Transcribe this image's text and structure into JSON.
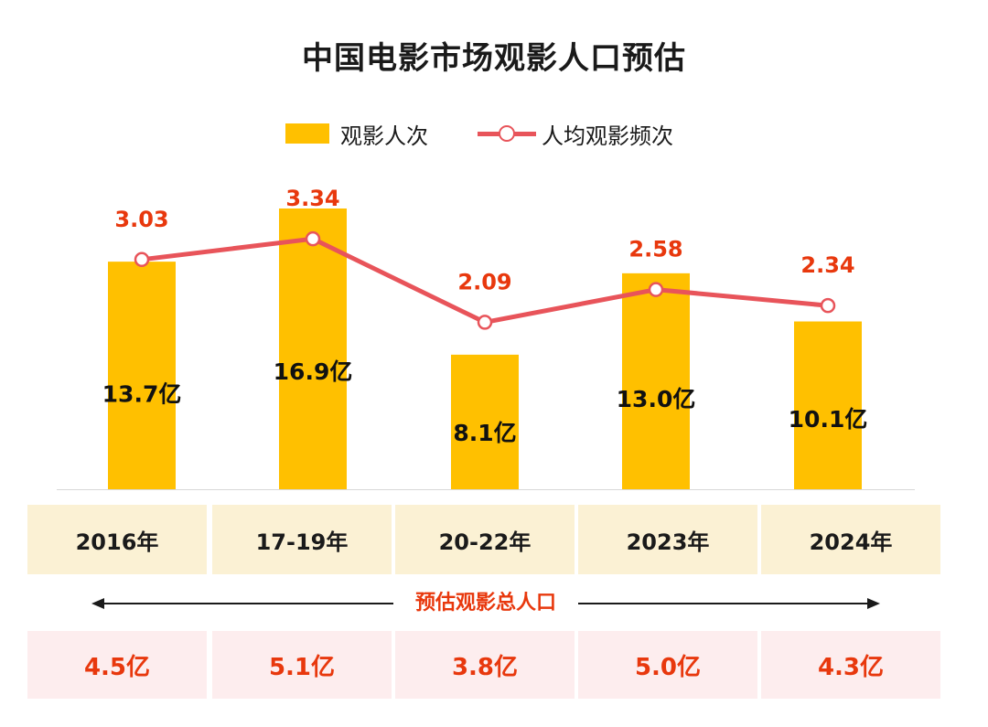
{
  "title": "中国电影市场观影人口预估",
  "legend": {
    "bar_label": "观影人次",
    "line_label": "人均观影频次"
  },
  "colors": {
    "bar": "#FFC000",
    "line": "#E8545A",
    "line_label": "#E8380D",
    "year_row_bg": "#FBF1D4",
    "population_row_bg": "#FDEDEE",
    "population_text": "#E8380D"
  },
  "chart_data": {
    "type": "bar",
    "title": "中国电影市场观影人口预估",
    "categories": [
      "2016年",
      "17-19年",
      "20-22年",
      "2023年",
      "2024年"
    ],
    "series": [
      {
        "name": "观影人次",
        "type": "bar",
        "values": [
          13.7,
          16.9,
          8.1,
          13.0,
          10.1
        ],
        "labels": [
          "13.7亿",
          "16.9亿",
          "8.1亿",
          "13.0亿",
          "10.1亿"
        ]
      },
      {
        "name": "人均观影频次",
        "type": "line",
        "values": [
          3.03,
          3.34,
          2.09,
          2.58,
          2.34
        ],
        "labels": [
          "3.03",
          "3.34",
          "2.09",
          "2.58",
          "2.34"
        ]
      }
    ],
    "legend_position": "top-center",
    "grid": false
  },
  "population_row": {
    "label": "预估观影总人口",
    "values": [
      "4.5亿",
      "5.1亿",
      "3.8亿",
      "5.0亿",
      "4.3亿"
    ]
  }
}
